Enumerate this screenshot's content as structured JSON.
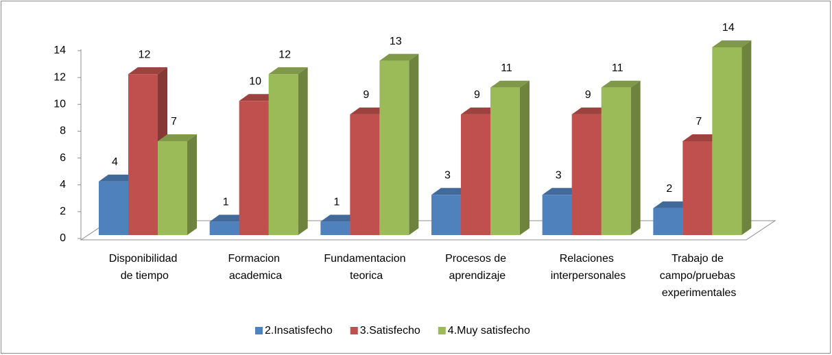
{
  "chart_data": {
    "type": "bar3d",
    "categories": [
      "Disponibilidad de tiempo",
      "Formacion academica",
      "Fundamentacion teorica",
      "Procesos de aprendizaje",
      "Relaciones interpersonales",
      "Trabajo de campo/pruebas experimentales"
    ],
    "series": [
      {
        "name": "2.Insatisfecho",
        "color": "#4f81bd",
        "values": [
          4,
          1,
          1,
          3,
          3,
          2
        ]
      },
      {
        "name": "3.Satisfecho",
        "color": "#c0504d",
        "values": [
          12,
          10,
          9,
          9,
          9,
          7
        ]
      },
      {
        "name": "4.Muy satisfecho",
        "color": "#9bbb59",
        "values": [
          7,
          12,
          13,
          11,
          11,
          14
        ]
      }
    ],
    "ylim": [
      0,
      14
    ],
    "yticks": [
      0,
      2,
      4,
      6,
      8,
      10,
      12,
      14
    ],
    "legend": "bottom"
  }
}
